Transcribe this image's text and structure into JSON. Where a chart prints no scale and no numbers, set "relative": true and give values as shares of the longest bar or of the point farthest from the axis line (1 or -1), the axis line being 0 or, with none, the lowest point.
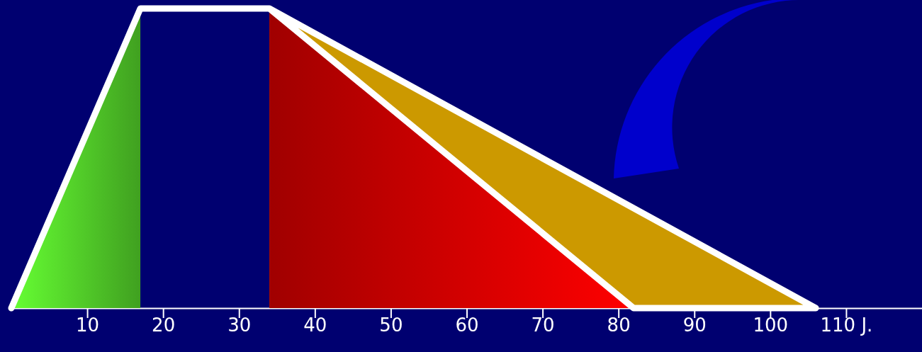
{
  "chart_data": {
    "type": "area",
    "relative": true,
    "xlim": [
      0,
      120
    ],
    "xticks": [
      10,
      20,
      30,
      40,
      50,
      60,
      70,
      80,
      90,
      100,
      {
        "value": 110,
        "label": "110 J."
      }
    ],
    "tick_labels": "x",
    "grid": false,
    "legend": false,
    "series": [
      {
        "type": "area",
        "color": "#66ff33",
        "x": [
          0,
          17
        ],
        "values": [
          0,
          1
        ]
      },
      {
        "type": "area",
        "color": "#cc9900",
        "x": [
          34,
          106
        ],
        "values": [
          1,
          0
        ]
      },
      {
        "type": "area",
        "color": "#ff0000",
        "x": [
          34,
          82
        ],
        "values": [
          1,
          0
        ]
      },
      {
        "type": "line",
        "color": "#ffffff",
        "x": [
          0,
          17,
          34,
          106,
          82,
          34
        ],
        "values": [
          0,
          1,
          1,
          0,
          0,
          1
        ]
      }
    ]
  }
}
